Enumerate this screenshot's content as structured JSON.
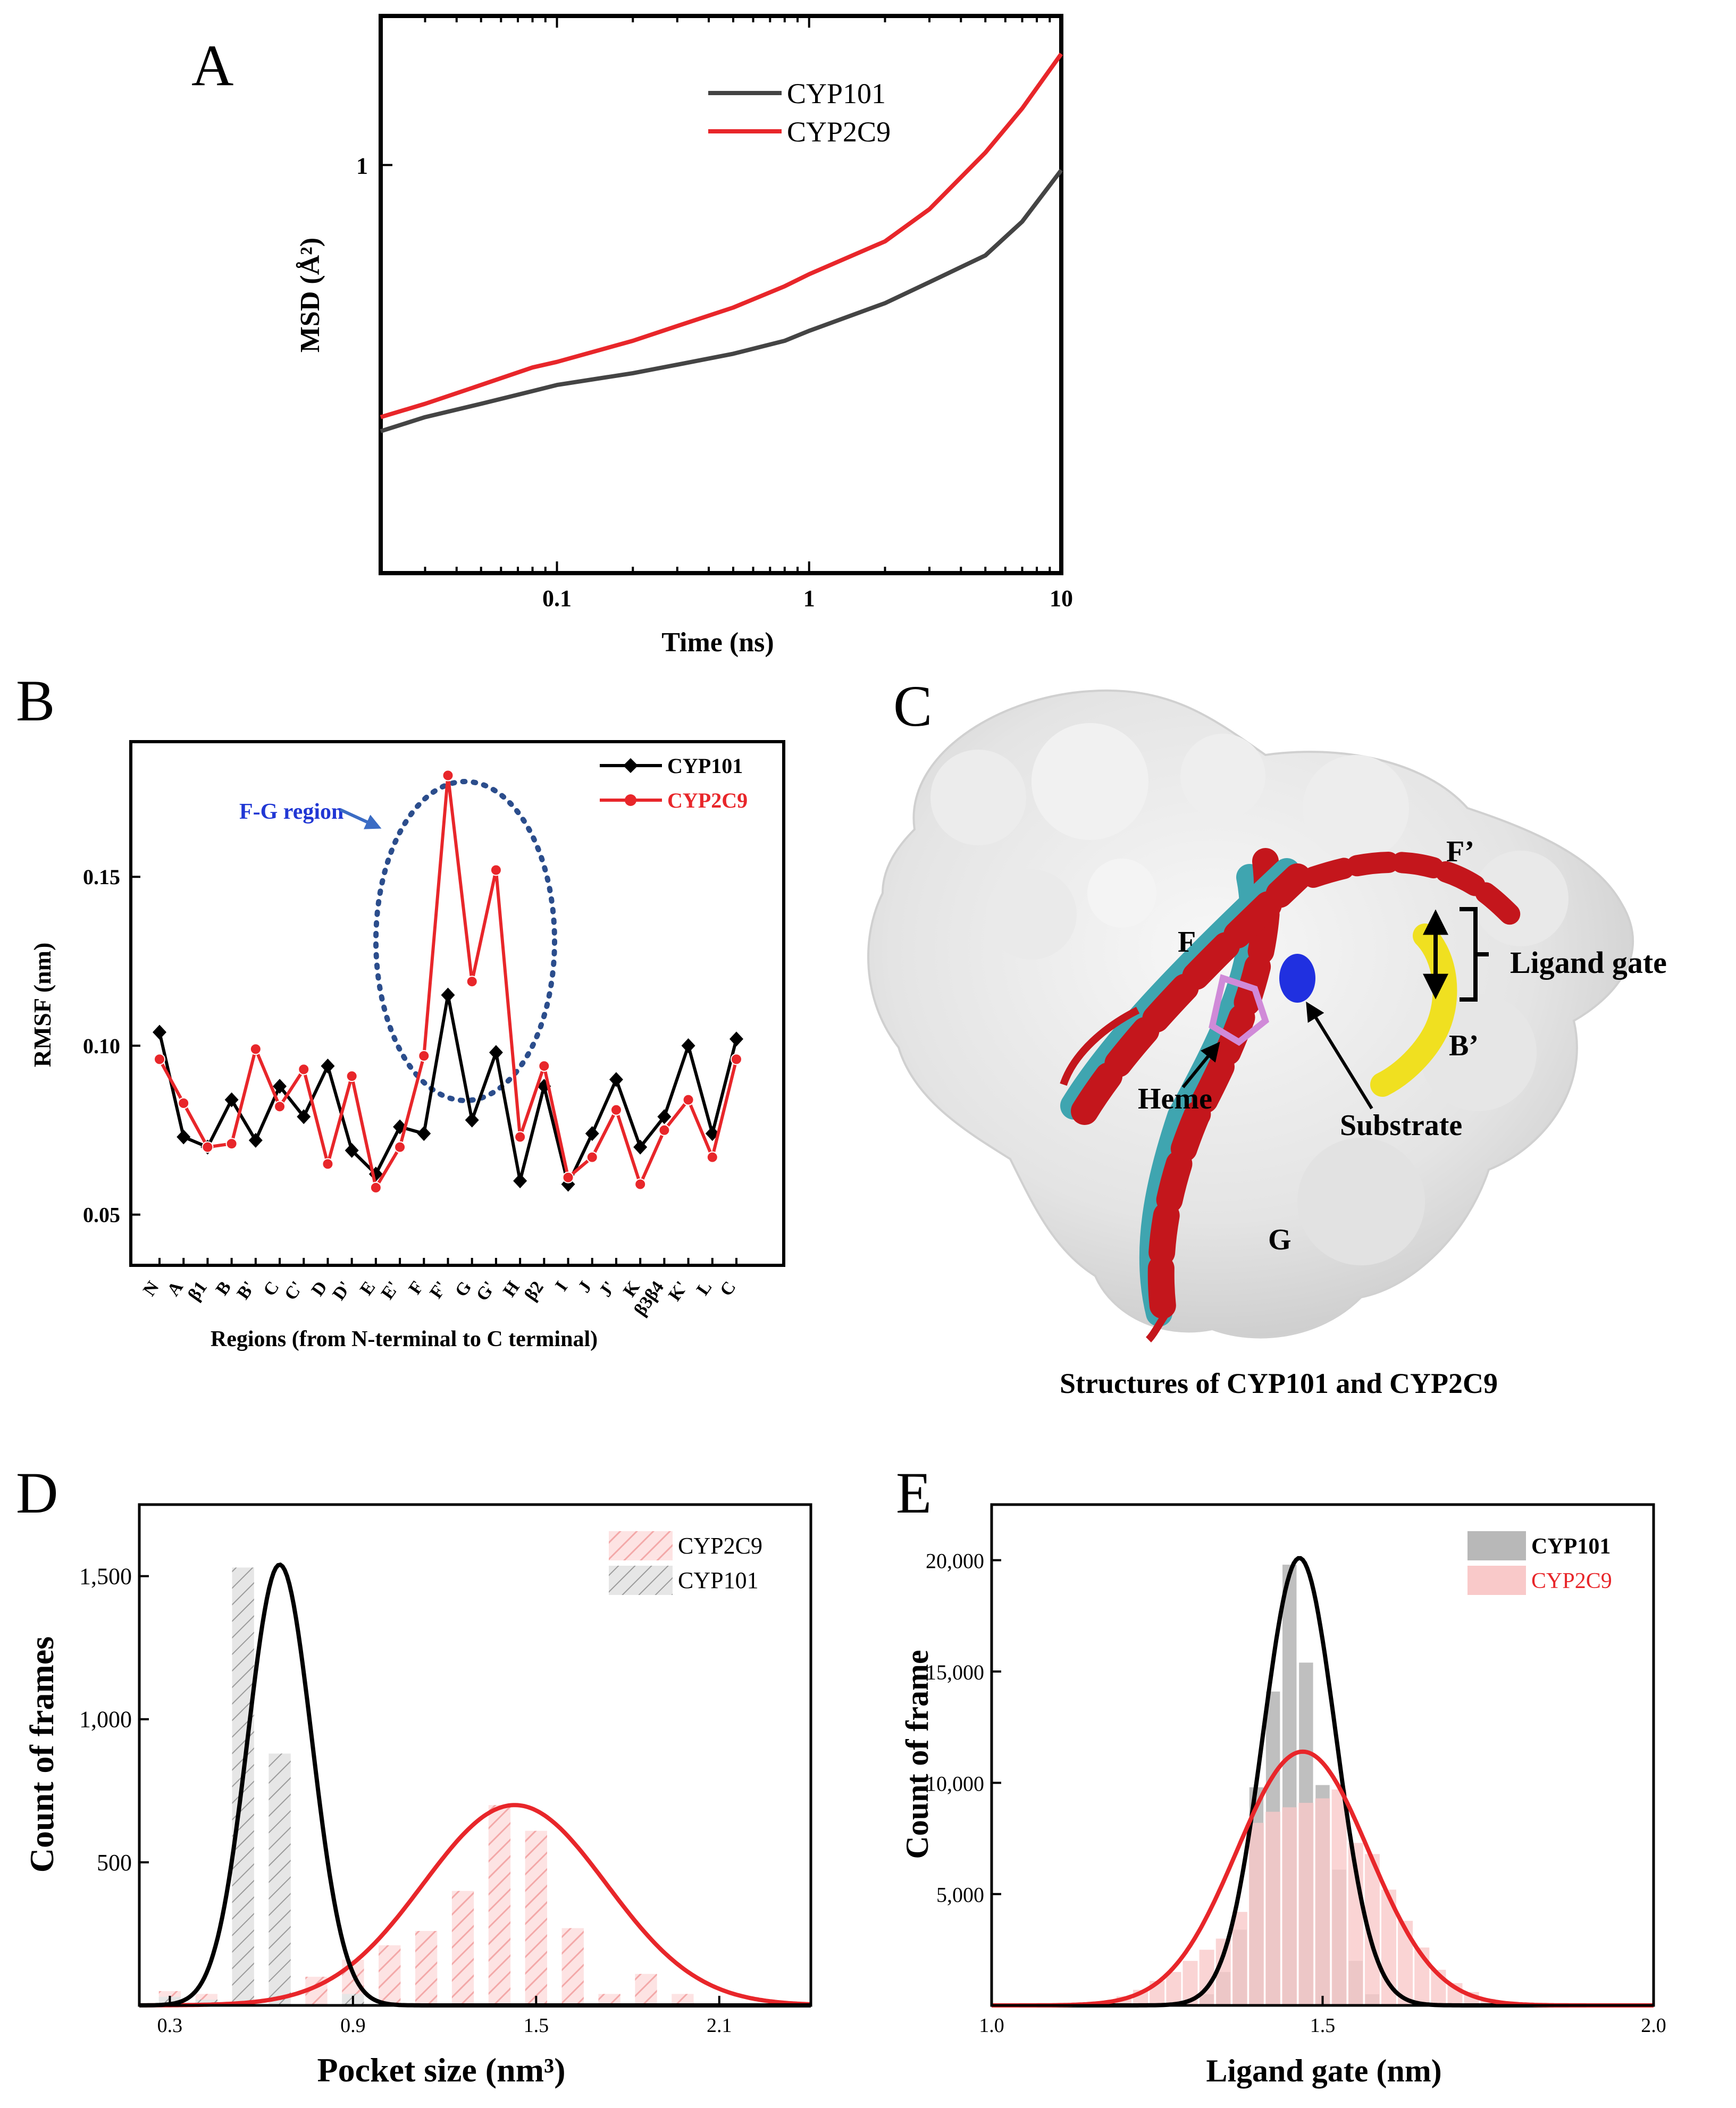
{
  "colors": {
    "cyp101": "#000000",
    "cyp101_msd": "#444444",
    "cyp2c9": "#e8262a",
    "cyp2c9_hist": "#f9c9c9",
    "cyp101_hist": "#c8c8c8",
    "ellipse": "#2b4d8c",
    "fg_label": "#2037d4",
    "arrow": "#3b6cc4",
    "helix_red": "#c4161c",
    "helix_cyan": "#3fa5b0",
    "helix_yellow": "#f0e020",
    "surface": "#e3e3e3"
  },
  "chart_data": [
    {
      "id": "A",
      "panel_label": "A",
      "type": "line",
      "xscale": "log",
      "yscale": "log",
      "xlabel": "Time (ns)",
      "ylabel": "MSD (Å²)",
      "xlim": [
        0.02,
        10
      ],
      "ylim": [
        0.2,
        1.8
      ],
      "xticks": [
        {
          "v": 0.1,
          "label": "0.1"
        },
        {
          "v": 1,
          "label": "1"
        },
        {
          "v": 10,
          "label": "10"
        }
      ],
      "yticks": [
        {
          "v": 1,
          "label": "1"
        }
      ],
      "legend_position": "top-right",
      "series": [
        {
          "name": "CYP101",
          "color_key": "cyp101_msd",
          "x": [
            0.02,
            0.03,
            0.05,
            0.08,
            0.1,
            0.2,
            0.3,
            0.5,
            0.8,
            1,
            2,
            3,
            5,
            7,
            10
          ],
          "y": [
            0.35,
            0.37,
            0.39,
            0.41,
            0.42,
            0.44,
            0.455,
            0.475,
            0.5,
            0.52,
            0.58,
            0.63,
            0.7,
            0.8,
            0.98
          ]
        },
        {
          "name": "CYP2C9",
          "color_key": "cyp2c9",
          "x": [
            0.02,
            0.03,
            0.05,
            0.08,
            0.1,
            0.2,
            0.3,
            0.5,
            0.8,
            1,
            2,
            3,
            5,
            7,
            10
          ],
          "y": [
            0.37,
            0.39,
            0.42,
            0.45,
            0.46,
            0.5,
            0.53,
            0.57,
            0.62,
            0.65,
            0.74,
            0.84,
            1.05,
            1.25,
            1.55
          ]
        }
      ]
    },
    {
      "id": "B",
      "panel_label": "B",
      "type": "line",
      "xlabel": "Regions (from N-terminal to C terminal)",
      "ylabel": "RMSF (nm)",
      "ylim": [
        0.035,
        0.19
      ],
      "yticks": [
        {
          "v": 0.05,
          "label": "0.05"
        },
        {
          "v": 0.1,
          "label": "0.10"
        },
        {
          "v": 0.15,
          "label": "0.15"
        }
      ],
      "categories": [
        "N",
        "A",
        "β1",
        "B",
        "B'",
        "C",
        "C'",
        "D",
        "D'",
        "E",
        "E'",
        "F",
        "F'",
        "G",
        "G'",
        "H",
        "β2",
        "I",
        "J",
        "J'",
        "K",
        "β3β4",
        "K'",
        "L",
        "C"
      ],
      "legend_position": "top-right",
      "annotation": "F-G region",
      "series": [
        {
          "name": "CYP101",
          "color_key": "cyp101",
          "marker": "diamond",
          "values": [
            0.104,
            0.073,
            0.07,
            0.084,
            0.072,
            0.088,
            0.079,
            0.094,
            0.069,
            0.062,
            0.076,
            0.074,
            0.115,
            0.078,
            0.098,
            0.06,
            0.088,
            0.059,
            0.074,
            0.09,
            0.07,
            0.079,
            0.1,
            0.074,
            0.102
          ]
        },
        {
          "name": "CYP2C9",
          "color_key": "cyp2c9",
          "marker": "circle",
          "values": [
            0.096,
            0.083,
            0.07,
            0.071,
            0.099,
            0.082,
            0.093,
            0.065,
            0.091,
            0.058,
            0.07,
            0.097,
            0.18,
            0.119,
            0.152,
            0.073,
            0.094,
            0.061,
            0.067,
            0.081,
            0.059,
            0.075,
            0.084,
            0.067,
            0.096
          ]
        }
      ]
    },
    {
      "id": "D",
      "panel_label": "D",
      "type": "bar",
      "xlabel": "Pocket size (nm³)",
      "ylabel": "Count of frames",
      "xlim": [
        0.2,
        2.4
      ],
      "ylim": [
        0,
        1750
      ],
      "xticks": [
        {
          "v": 0.3,
          "label": "0.3"
        },
        {
          "v": 0.9,
          "label": "0.9"
        },
        {
          "v": 1.5,
          "label": "1.5"
        },
        {
          "v": 2.1,
          "label": "2.1"
        }
      ],
      "yticks": [
        {
          "v": 500,
          "label": "500"
        },
        {
          "v": 1000,
          "label": "1,000"
        },
        {
          "v": 1500,
          "label": "1,500"
        }
      ],
      "legend_position": "top-right",
      "bin_width": 0.12,
      "series": [
        {
          "name": "CYP2C9",
          "color_key": "cyp2c9_hist",
          "bins": [
            0.3,
            0.42,
            0.54,
            0.66,
            0.78,
            0.9,
            1.02,
            1.14,
            1.26,
            1.38,
            1.5,
            1.62,
            1.74,
            1.86,
            1.98,
            2.1
          ],
          "values": [
            50,
            40,
            30,
            60,
            100,
            160,
            210,
            260,
            400,
            700,
            610,
            270,
            40,
            110,
            40,
            0
          ],
          "fit": {
            "mu": 1.43,
            "sigma": 0.3,
            "amp": 700
          }
        },
        {
          "name": "CYP101",
          "color_key": "cyp101_hist",
          "bins": [
            0.3,
            0.42,
            0.54,
            0.66,
            0.78,
            0.9
          ],
          "values": [
            30,
            20,
            1530,
            880,
            0,
            40
          ],
          "fit": {
            "mu": 0.66,
            "sigma": 0.105,
            "amp": 1540
          }
        }
      ]
    },
    {
      "id": "E",
      "panel_label": "E",
      "type": "bar",
      "xlabel": "Ligand gate (nm)",
      "ylabel": "Count of frame",
      "xlim": [
        1.0,
        2.0
      ],
      "ylim": [
        0,
        22500
      ],
      "xticks": [
        {
          "v": 1.0,
          "label": "1.0"
        },
        {
          "v": 1.5,
          "label": "1.5"
        },
        {
          "v": 2.0,
          "label": "2.0"
        }
      ],
      "yticks": [
        {
          "v": 5000,
          "label": "5,000"
        },
        {
          "v": 10000,
          "label": "10,000"
        },
        {
          "v": 15000,
          "label": "15,000"
        },
        {
          "v": 20000,
          "label": "20,000"
        }
      ],
      "legend_position": "top-right",
      "bin_width": 0.025,
      "series": [
        {
          "name": "CYP101",
          "color_key": "cyp101_hist",
          "bins": [
            1.325,
            1.35,
            1.375,
            1.4,
            1.425,
            1.45,
            1.475,
            1.5,
            1.525,
            1.55,
            1.575
          ],
          "values": [
            500,
            1500,
            3400,
            9800,
            14100,
            19800,
            15400,
            9900,
            6100,
            2000,
            500
          ],
          "fit": {
            "mu": 1.465,
            "sigma": 0.055,
            "amp": 20100
          }
        },
        {
          "name": "CYP2C9",
          "color_key": "cyp2c9_hist",
          "bins": [
            1.125,
            1.15,
            1.175,
            1.2,
            1.225,
            1.25,
            1.275,
            1.3,
            1.325,
            1.35,
            1.375,
            1.4,
            1.425,
            1.45,
            1.475,
            1.5,
            1.525,
            1.55,
            1.575,
            1.6,
            1.625,
            1.65,
            1.675,
            1.7,
            1.725,
            1.75,
            1.775,
            1.8
          ],
          "values": [
            50,
            100,
            200,
            400,
            700,
            1100,
            1500,
            2000,
            2500,
            3000,
            4200,
            8200,
            8700,
            8900,
            9100,
            9300,
            9700,
            7300,
            6800,
            5200,
            3800,
            2600,
            1600,
            1000,
            600,
            300,
            100,
            50
          ],
          "fit": {
            "mu": 1.47,
            "sigma": 0.1,
            "amp": 11400
          }
        }
      ]
    }
  ],
  "panel_c": {
    "panel_label": "C",
    "caption": "Structures of CYP101 and CYP2C9",
    "labels": {
      "F": "F",
      "F_prime": "F’",
      "B_prime": "B’",
      "G": "G",
      "heme": "Heme",
      "substrate": "Substrate",
      "ligand_gate": "Ligand gate"
    }
  }
}
